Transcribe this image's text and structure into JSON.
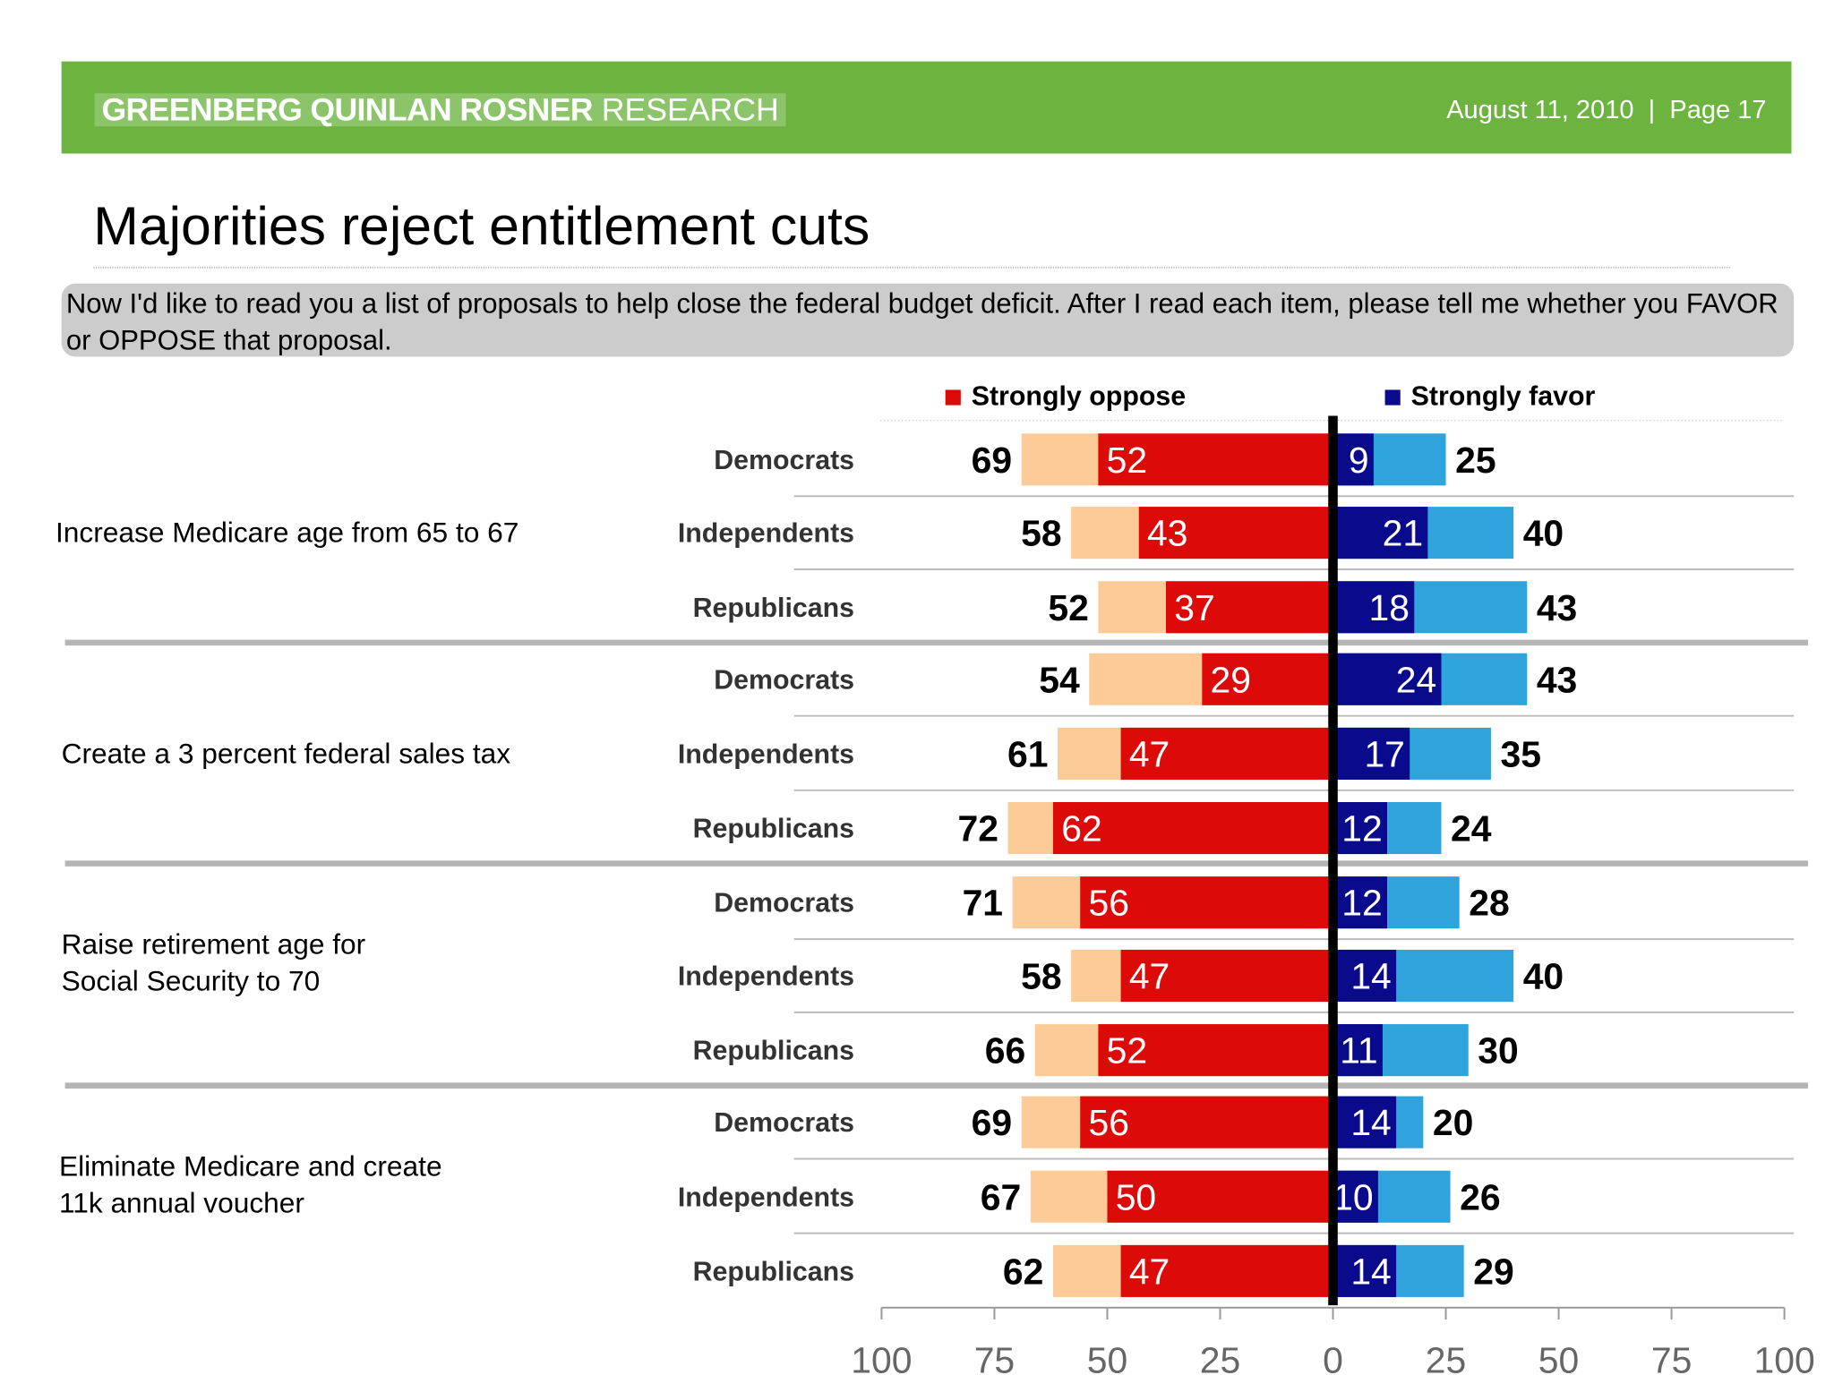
{
  "header": {
    "brand_bold": "GREENBERG QUINLAN ROSNER",
    "brand_light": "RESEARCH",
    "date": "August 11, 2010",
    "page": "Page 17",
    "separator": "|"
  },
  "title": "Majorities reject entitlement cuts",
  "question": "Now I'd like to read you a list of proposals to help close the federal budget deficit. After I read each item, please tell me whether you FAVOR or OPPOSE that proposal.",
  "colors": {
    "banner": "#6db33f",
    "total_oppose": "#fccb98",
    "strongly_oppose": "#dd0a0a",
    "strongly_favor": "#0a0a8c",
    "total_favor": "#2ea3dc"
  },
  "chart_data": {
    "type": "bar",
    "orientation": "horizontal diverging stacked",
    "legend": [
      {
        "name": "Strongly oppose",
        "color": "#dd0a0a"
      },
      {
        "name": "Strongly favor",
        "color": "#0a0a8c"
      }
    ],
    "legend_placement": "top",
    "xlim": [
      -100,
      100
    ],
    "x_tick_labels": [
      "100",
      "75",
      "50",
      "25",
      "0",
      "25",
      "50",
      "75",
      "100"
    ],
    "groups": [
      {
        "label": "Increase Medicare age from 65 to 67",
        "rows": [
          {
            "category": "Democrats",
            "total_oppose": 69,
            "strongly_oppose": 52,
            "strongly_favor": 9,
            "total_favor": 25
          },
          {
            "category": "Independents",
            "total_oppose": 58,
            "strongly_oppose": 43,
            "strongly_favor": 21,
            "total_favor": 40
          },
          {
            "category": "Republicans",
            "total_oppose": 52,
            "strongly_oppose": 37,
            "strongly_favor": 18,
            "total_favor": 43
          }
        ]
      },
      {
        "label": "Create a 3 percent federal sales tax",
        "rows": [
          {
            "category": "Democrats",
            "total_oppose": 54,
            "strongly_oppose": 29,
            "strongly_favor": 24,
            "total_favor": 43
          },
          {
            "category": "Independents",
            "total_oppose": 61,
            "strongly_oppose": 47,
            "strongly_favor": 17,
            "total_favor": 35
          },
          {
            "category": "Republicans",
            "total_oppose": 72,
            "strongly_oppose": 62,
            "strongly_favor": 12,
            "total_favor": 24
          }
        ]
      },
      {
        "label": "Raise retirement age for\nSocial Security to 70",
        "rows": [
          {
            "category": "Democrats",
            "total_oppose": 71,
            "strongly_oppose": 56,
            "strongly_favor": 12,
            "total_favor": 28
          },
          {
            "category": "Independents",
            "total_oppose": 58,
            "strongly_oppose": 47,
            "strongly_favor": 14,
            "total_favor": 40
          },
          {
            "category": "Republicans",
            "total_oppose": 66,
            "strongly_oppose": 52,
            "strongly_favor": 11,
            "total_favor": 30
          }
        ]
      },
      {
        "label": "Eliminate Medicare and create\n11k annual voucher",
        "rows": [
          {
            "category": "Democrats",
            "total_oppose": 69,
            "strongly_oppose": 56,
            "strongly_favor": 14,
            "total_favor": 20
          },
          {
            "category": "Independents",
            "total_oppose": 67,
            "strongly_oppose": 50,
            "strongly_favor": 10,
            "total_favor": 26
          },
          {
            "category": "Republicans",
            "total_oppose": 62,
            "strongly_oppose": 47,
            "strongly_favor": 14,
            "total_favor": 29
          }
        ]
      }
    ]
  }
}
